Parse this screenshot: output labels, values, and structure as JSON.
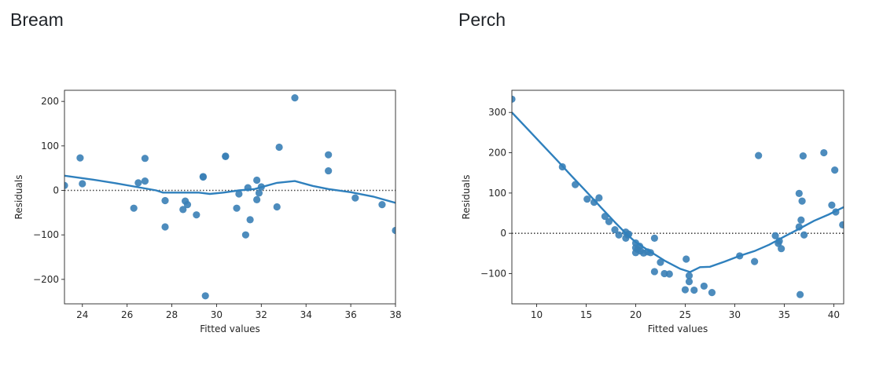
{
  "panels": [
    {
      "title": "Bream"
    },
    {
      "title": "Perch"
    }
  ],
  "colors": {
    "points": "#3a7fb6",
    "line": "#2f80bd",
    "reference": "#444444"
  },
  "chart_data": [
    {
      "type": "scatter",
      "title": "",
      "xlabel": "Fitted values",
      "ylabel": "Residuals",
      "xlim": [
        23.2,
        38
      ],
      "ylim": [
        -255,
        225
      ],
      "xticks": [
        24,
        26,
        28,
        30,
        32,
        34,
        36,
        38
      ],
      "yticks": [
        -200,
        -100,
        0,
        100,
        200
      ],
      "tick_labels_x": [
        "24",
        "26",
        "28",
        "30",
        "32",
        "34",
        "36",
        "38"
      ],
      "tick_labels_y": [
        "−200",
        "−100",
        "0",
        "100",
        "200"
      ],
      "reference_line_y": 0,
      "points": [
        [
          23.2,
          11
        ],
        [
          23.9,
          73
        ],
        [
          24.0,
          15
        ],
        [
          26.3,
          -40
        ],
        [
          26.5,
          17
        ],
        [
          26.8,
          21
        ],
        [
          26.8,
          72
        ],
        [
          27.7,
          -23
        ],
        [
          27.7,
          -82
        ],
        [
          28.5,
          -43
        ],
        [
          28.6,
          -24
        ],
        [
          28.7,
          -32
        ],
        [
          29.1,
          -55
        ],
        [
          29.4,
          31
        ],
        [
          29.4,
          30
        ],
        [
          29.5,
          -237
        ],
        [
          30.4,
          77
        ],
        [
          30.4,
          76
        ],
        [
          30.9,
          -40
        ],
        [
          31.0,
          -8
        ],
        [
          31.3,
          -100
        ],
        [
          31.4,
          6
        ],
        [
          31.5,
          -66
        ],
        [
          31.8,
          -21
        ],
        [
          31.8,
          23
        ],
        [
          31.9,
          -6
        ],
        [
          32.0,
          8
        ],
        [
          32.7,
          -37
        ],
        [
          32.8,
          97
        ],
        [
          33.5,
          208
        ],
        [
          35.0,
          80
        ],
        [
          35.0,
          44
        ],
        [
          36.2,
          -17
        ],
        [
          37.4,
          -32
        ],
        [
          38.0,
          -90
        ]
      ],
      "trend": [
        [
          23.2,
          33
        ],
        [
          24.5,
          24
        ],
        [
          25.5,
          16
        ],
        [
          26.5,
          7
        ],
        [
          27.3,
          0
        ],
        [
          27.6,
          -5
        ],
        [
          28.5,
          -5
        ],
        [
          29.2,
          -5
        ],
        [
          29.7,
          -8
        ],
        [
          30.3,
          -5
        ],
        [
          31.0,
          0
        ],
        [
          31.7,
          3
        ],
        [
          32.2,
          10
        ],
        [
          32.7,
          17
        ],
        [
          33.5,
          21
        ],
        [
          34.3,
          10
        ],
        [
          35.0,
          3
        ],
        [
          36.0,
          -4
        ],
        [
          37.0,
          -14
        ],
        [
          38.0,
          -28
        ]
      ]
    },
    {
      "type": "scatter",
      "title": "",
      "xlabel": "Fitted values",
      "ylabel": "Residuals",
      "xlim": [
        7.5,
        41
      ],
      "ylim": [
        -175,
        355
      ],
      "xticks": [
        10,
        15,
        20,
        25,
        30,
        35,
        40
      ],
      "yticks": [
        -100,
        0,
        100,
        200,
        300
      ],
      "tick_labels_x": [
        "10",
        "15",
        "20",
        "25",
        "30",
        "35",
        "40"
      ],
      "tick_labels_y": [
        "−100",
        "0",
        "100",
        "200",
        "300"
      ],
      "reference_line_y": 0,
      "points": [
        [
          7.5,
          333
        ],
        [
          12.6,
          165
        ],
        [
          13.9,
          121
        ],
        [
          15.1,
          85
        ],
        [
          15.8,
          77
        ],
        [
          16.3,
          88
        ],
        [
          16.9,
          42
        ],
        [
          17.3,
          29
        ],
        [
          17.9,
          9
        ],
        [
          18.3,
          -4
        ],
        [
          19.0,
          3
        ],
        [
          19.0,
          -12
        ],
        [
          19.2,
          -4
        ],
        [
          19.3,
          -2
        ],
        [
          20.0,
          -24
        ],
        [
          20.0,
          -36
        ],
        [
          20.0,
          -48
        ],
        [
          20.2,
          -40
        ],
        [
          20.4,
          -32
        ],
        [
          20.5,
          -44
        ],
        [
          20.8,
          -49
        ],
        [
          21.2,
          -46
        ],
        [
          21.5,
          -48
        ],
        [
          21.9,
          -12
        ],
        [
          21.9,
          -95
        ],
        [
          22.5,
          -72
        ],
        [
          22.9,
          -100
        ],
        [
          23.4,
          -101
        ],
        [
          25.1,
          -64
        ],
        [
          25.4,
          -105
        ],
        [
          25.4,
          -120
        ],
        [
          25.0,
          -140
        ],
        [
          25.9,
          -141
        ],
        [
          26.9,
          -131
        ],
        [
          27.7,
          -147
        ],
        [
          30.5,
          -56
        ],
        [
          32.0,
          -70
        ],
        [
          32.4,
          193
        ],
        [
          34.1,
          -6
        ],
        [
          34.4,
          -25
        ],
        [
          34.5,
          -19
        ],
        [
          34.7,
          -38
        ],
        [
          36.5,
          99
        ],
        [
          36.5,
          16
        ],
        [
          36.7,
          33
        ],
        [
          36.8,
          80
        ],
        [
          36.9,
          192
        ],
        [
          37.0,
          -4
        ],
        [
          36.6,
          -152
        ],
        [
          39.0,
          200
        ],
        [
          39.8,
          70
        ],
        [
          40.1,
          157
        ],
        [
          40.2,
          53
        ],
        [
          40.9,
          21
        ]
      ],
      "trend": [
        [
          7.5,
          300
        ],
        [
          9.0,
          261
        ],
        [
          10.5,
          222
        ],
        [
          12.0,
          183
        ],
        [
          13.5,
          143
        ],
        [
          15.0,
          104
        ],
        [
          16.5,
          64
        ],
        [
          18.0,
          25
        ],
        [
          19.0,
          0
        ],
        [
          20.0,
          -22
        ],
        [
          21.5,
          -46
        ],
        [
          23.0,
          -69
        ],
        [
          24.5,
          -88
        ],
        [
          25.5,
          -96
        ],
        [
          26.5,
          -84
        ],
        [
          27.5,
          -83
        ],
        [
          29.0,
          -70
        ],
        [
          30.5,
          -56
        ],
        [
          32.0,
          -44
        ],
        [
          33.5,
          -28
        ],
        [
          35.0,
          -8
        ],
        [
          36.5,
          11
        ],
        [
          38.0,
          31
        ],
        [
          39.5,
          47
        ],
        [
          41.0,
          65
        ]
      ]
    }
  ]
}
